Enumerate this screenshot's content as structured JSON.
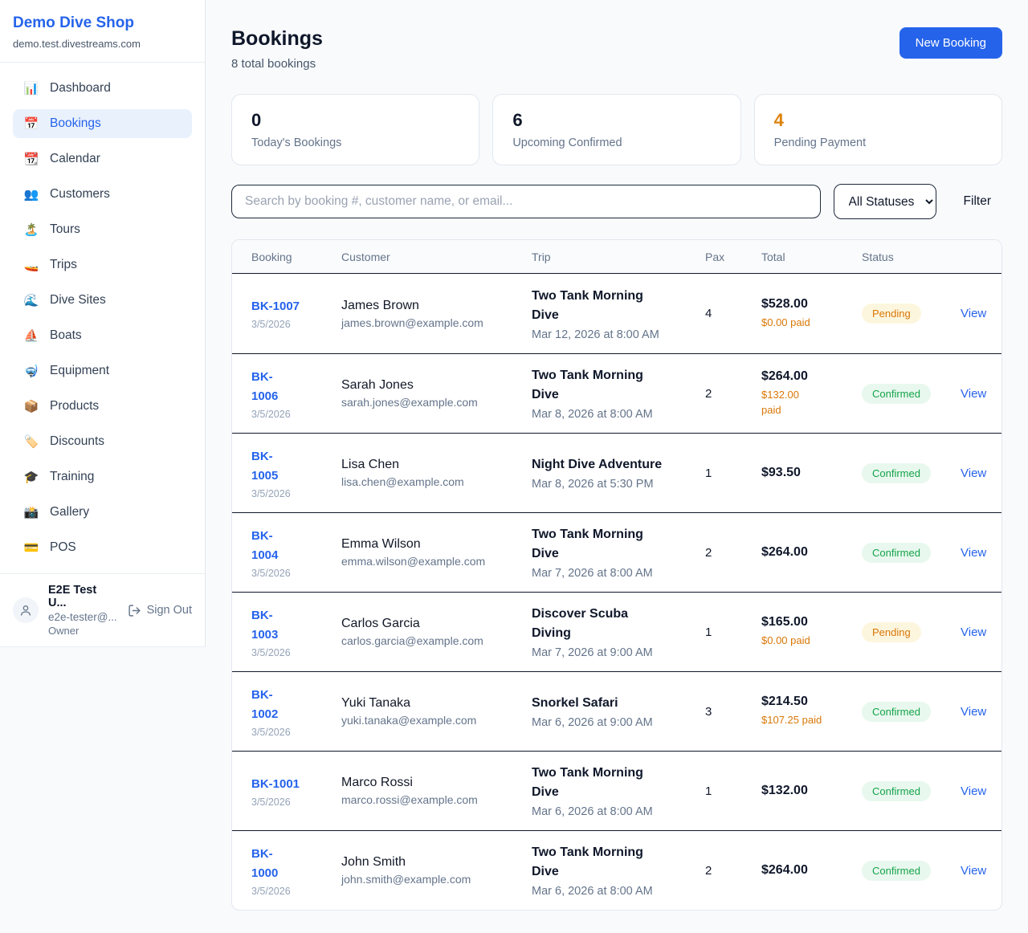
{
  "sidebar": {
    "brand": {
      "name": "Demo Dive Shop",
      "domain": "demo.test.divestreams.com"
    },
    "items": [
      {
        "icon": "📊",
        "icon_name": "bar-chart-icon",
        "label": "Dashboard",
        "active": false
      },
      {
        "icon": "📅",
        "icon_name": "calendar-17-icon",
        "label": "Bookings",
        "active": true
      },
      {
        "icon": "📆",
        "icon_name": "tear-off-calendar-icon",
        "label": "Calendar",
        "active": false
      },
      {
        "icon": "👥",
        "icon_name": "people-icon",
        "label": "Customers",
        "active": false
      },
      {
        "icon": "🏝️",
        "icon_name": "island-icon",
        "label": "Tours",
        "active": false
      },
      {
        "icon": "🚤",
        "icon_name": "speedboat-icon",
        "label": "Trips",
        "active": false
      },
      {
        "icon": "🌊",
        "icon_name": "wave-icon",
        "label": "Dive Sites",
        "active": false
      },
      {
        "icon": "⛵",
        "icon_name": "sailboat-icon",
        "label": "Boats",
        "active": false
      },
      {
        "icon": "🤿",
        "icon_name": "diving-mask-icon",
        "label": "Equipment",
        "active": false
      },
      {
        "icon": "📦",
        "icon_name": "package-icon",
        "label": "Products",
        "active": false
      },
      {
        "icon": "🏷️",
        "icon_name": "tag-icon",
        "label": "Discounts",
        "active": false
      },
      {
        "icon": "🎓",
        "icon_name": "graduation-cap-icon",
        "label": "Training",
        "active": false
      },
      {
        "icon": "📸",
        "icon_name": "camera-icon",
        "label": "Gallery",
        "active": false
      },
      {
        "icon": "💳",
        "icon_name": "credit-card-icon",
        "label": "POS",
        "active": false
      }
    ],
    "user": {
      "name": "E2E Test U...",
      "email": "e2e-tester@...",
      "role": "Owner",
      "sign_out_label": "Sign Out"
    }
  },
  "header": {
    "title": "Bookings",
    "subtitle": "8 total bookings",
    "new_booking_label": "New Booking"
  },
  "stats": [
    {
      "value": "0",
      "label": "Today's Bookings",
      "value_color": "#0f172a"
    },
    {
      "value": "6",
      "label": "Upcoming Confirmed",
      "value_color": "#0f172a"
    },
    {
      "value": "4",
      "label": "Pending Payment",
      "value_color": "#dd830d"
    }
  ],
  "filters": {
    "search_placeholder": "Search by booking #, customer name, or email...",
    "status_selected": "All Statuses",
    "filter_label": "Filter"
  },
  "table": {
    "columns": [
      "Booking",
      "Customer",
      "Trip",
      "Pax",
      "Total",
      "Status"
    ],
    "view_label": "View",
    "rows": [
      {
        "id": "BK-1007",
        "date": "3/5/2026",
        "customer": "James Brown",
        "email": "james.brown@example.com",
        "trip": "Two Tank Morning\nDive",
        "trip_time": "Mar 12, 2026 at 8:00 AM",
        "pax": "4",
        "total": "$528.00",
        "paid": "$0.00 paid",
        "status": "Pending"
      },
      {
        "id": "BK-\n1006",
        "date": "3/5/2026",
        "customer": "Sarah Jones",
        "email": "sarah.jones@example.com",
        "trip": "Two Tank Morning\nDive",
        "trip_time": "Mar 8, 2026 at 8:00 AM",
        "pax": "2",
        "total": "$264.00",
        "paid": "$132.00\npaid",
        "status": "Confirmed"
      },
      {
        "id": "BK-\n1005",
        "date": "3/5/2026",
        "customer": "Lisa Chen",
        "email": "lisa.chen@example.com",
        "trip": "Night Dive Adventure",
        "trip_time": "Mar 8, 2026 at 5:30 PM",
        "pax": "1",
        "total": "$93.50",
        "paid": "",
        "status": "Confirmed"
      },
      {
        "id": "BK-\n1004",
        "date": "3/5/2026",
        "customer": "Emma Wilson",
        "email": "emma.wilson@example.com",
        "trip": "Two Tank Morning\nDive",
        "trip_time": "Mar 7, 2026 at 8:00 AM",
        "pax": "2",
        "total": "$264.00",
        "paid": "",
        "status": "Confirmed"
      },
      {
        "id": "BK-\n1003",
        "date": "3/5/2026",
        "customer": "Carlos Garcia",
        "email": "carlos.garcia@example.com",
        "trip": "Discover Scuba\nDiving",
        "trip_time": "Mar 7, 2026 at 9:00 AM",
        "pax": "1",
        "total": "$165.00",
        "paid": "$0.00 paid",
        "status": "Pending"
      },
      {
        "id": "BK-\n1002",
        "date": "3/5/2026",
        "customer": "Yuki Tanaka",
        "email": "yuki.tanaka@example.com",
        "trip": "Snorkel Safari",
        "trip_time": "Mar 6, 2026 at 9:00 AM",
        "pax": "3",
        "total": "$214.50",
        "paid": "$107.25 paid",
        "status": "Confirmed"
      },
      {
        "id": "BK-1001",
        "date": "3/5/2026",
        "customer": "Marco Rossi",
        "email": "marco.rossi@example.com",
        "trip": "Two Tank Morning\nDive",
        "trip_time": "Mar 6, 2026 at 8:00 AM",
        "pax": "1",
        "total": "$132.00",
        "paid": "",
        "status": "Confirmed"
      },
      {
        "id": "BK-\n1000",
        "date": "3/5/2026",
        "customer": "John Smith",
        "email": "john.smith@example.com",
        "trip": "Two Tank Morning\nDive",
        "trip_time": "Mar 6, 2026 at 8:00 AM",
        "pax": "2",
        "total": "$264.00",
        "paid": "",
        "status": "Confirmed"
      }
    ]
  },
  "colors": {
    "accent_blue": "#2563eb",
    "pending_orange": "#d97706",
    "confirmed_green": "#16a34a",
    "pending_badge_bg": "#fdf6de",
    "confirmed_badge_bg": "#e8f8ee",
    "page_bg": "#f8fafc"
  }
}
